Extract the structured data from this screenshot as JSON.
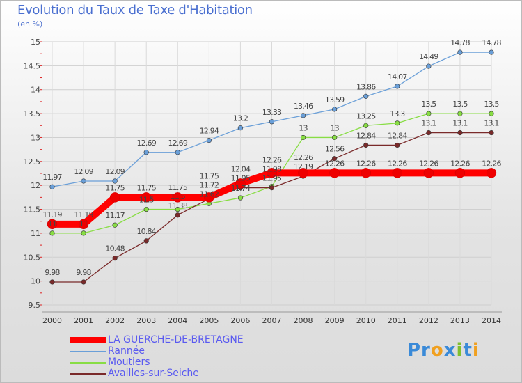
{
  "chart_data": {
    "type": "line",
    "title": "Evolution du Taux de Taxe d'Habitation",
    "ylabel": "(en %)",
    "x": [
      2000,
      2001,
      2002,
      2003,
      2004,
      2005,
      2006,
      2007,
      2008,
      2009,
      2010,
      2011,
      2012,
      2013,
      2014
    ],
    "ylim": [
      9.5,
      15
    ],
    "yticks": [
      9.5,
      10,
      10.5,
      11,
      11.5,
      12,
      12.5,
      13,
      13.5,
      14,
      14.5,
      15
    ],
    "series": [
      {
        "name": "Rannée",
        "color": "#6a9fd8",
        "values": [
          11.97,
          12.09,
          12.09,
          12.69,
          12.69,
          12.94,
          13.2,
          13.33,
          13.46,
          13.59,
          13.86,
          14.07,
          14.49,
          14.78,
          14.78
        ]
      },
      {
        "name": "Moutiers",
        "color": "#88dd44",
        "values": [
          11,
          11,
          11.17,
          11.5,
          11.5,
          11.62,
          11.74,
          11.98,
          13,
          13,
          13.25,
          13.3,
          13.5,
          13.5,
          13.5
        ]
      },
      {
        "name": "Availles-sur-Seiche",
        "color": "#7a2a2a",
        "values": [
          9.98,
          9.98,
          10.48,
          10.84,
          11.38,
          11.72,
          11.95,
          11.95,
          12.19,
          12.56,
          12.84,
          12.84,
          13.1,
          13.1,
          13.1
        ]
      },
      {
        "name": "LA GUERCHE-DE-BRETAGNE",
        "color": "#ff0000",
        "values": [
          11.19,
          11.19,
          11.75,
          11.75,
          11.75,
          11.75,
          12.04,
          12.26,
          12.26,
          12.26,
          12.26,
          12.26,
          12.26,
          12.26,
          12.26
        ]
      }
    ]
  },
  "logo": "Proxiti"
}
